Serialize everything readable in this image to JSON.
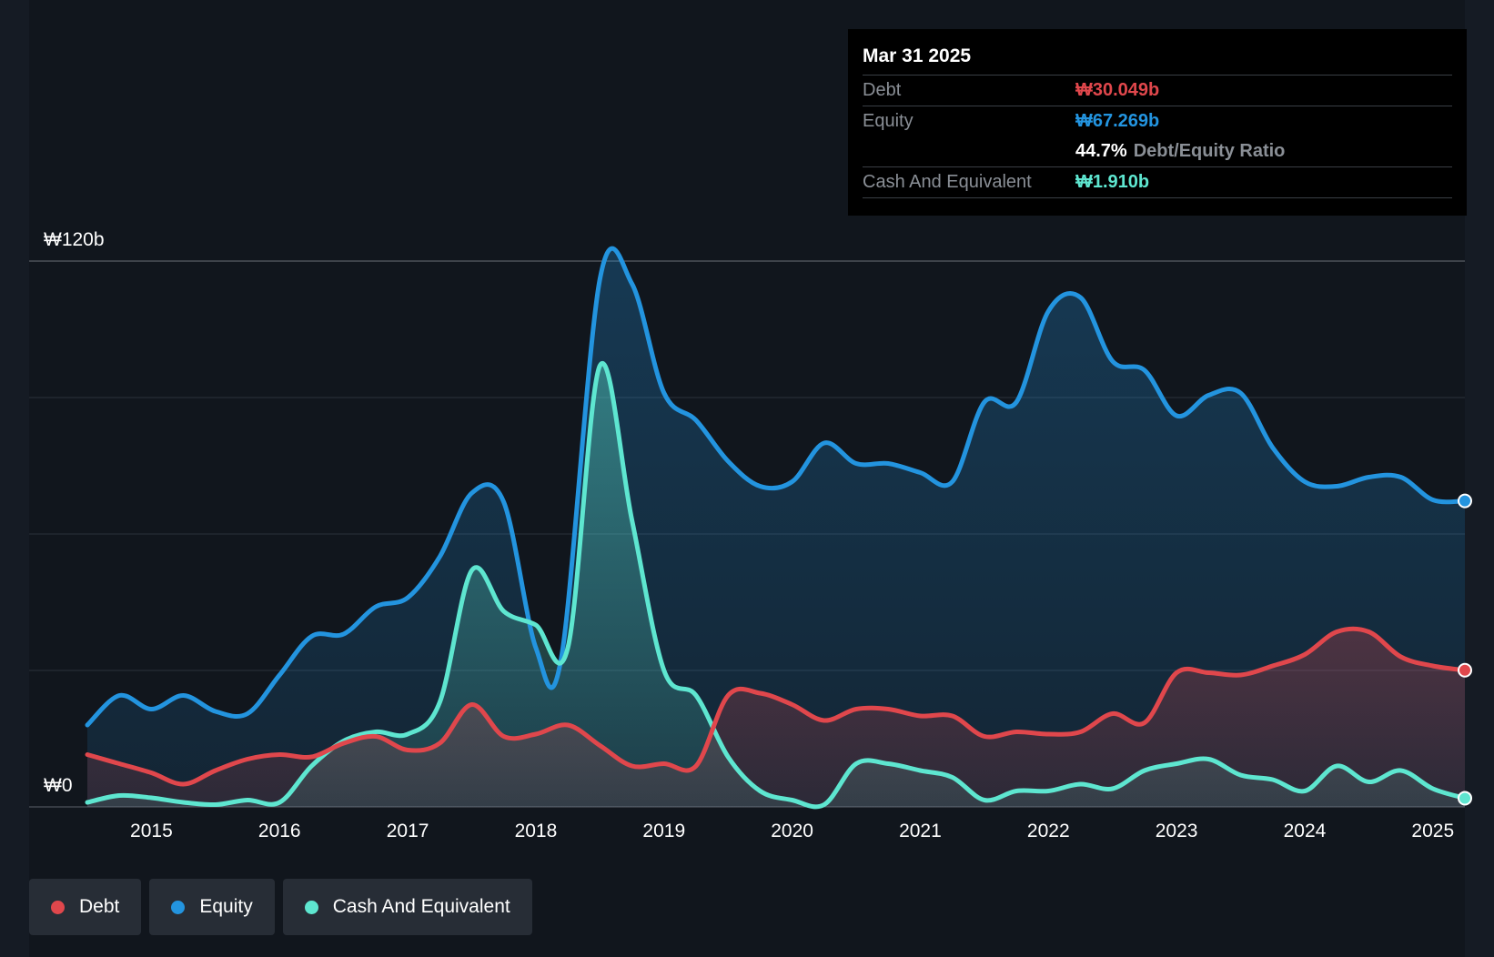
{
  "tooltip": {
    "date": "Mar 31 2025",
    "debt_label": "Debt",
    "debt_value": "₩30.049b",
    "equity_label": "Equity",
    "equity_value": "₩67.269b",
    "ratio_value": "44.7%",
    "ratio_label": "Debt/Equity Ratio",
    "cash_label": "Cash And Equivalent",
    "cash_value": "₩1.910b"
  },
  "legend": [
    {
      "label": "Debt",
      "color": "#e0474c"
    },
    {
      "label": "Equity",
      "color": "#2394df"
    },
    {
      "label": "Cash And Equivalent",
      "color": "#5ee6d0"
    }
  ],
  "chart_data": {
    "type": "area",
    "ylabels": [
      "₩120b",
      "₩0"
    ],
    "ylim": [
      0,
      120
    ],
    "xlim": [
      2014.5,
      2025.25
    ],
    "xticks": [
      "2015",
      "2016",
      "2017",
      "2018",
      "2019",
      "2020",
      "2021",
      "2022",
      "2023",
      "2024",
      "2025"
    ],
    "series": [
      {
        "name": "Equity",
        "color": "#2394df",
        "points": [
          [
            2014.5,
            18
          ],
          [
            2014.75,
            24.5
          ],
          [
            2015,
            21.5
          ],
          [
            2015.25,
            24.5
          ],
          [
            2015.5,
            21
          ],
          [
            2015.75,
            20.5
          ],
          [
            2016,
            29
          ],
          [
            2016.25,
            37.5
          ],
          [
            2016.5,
            38
          ],
          [
            2016.75,
            44
          ],
          [
            2017,
            46
          ],
          [
            2017.25,
            55
          ],
          [
            2017.5,
            69
          ],
          [
            2017.75,
            67
          ],
          [
            2018,
            35
          ],
          [
            2018.2,
            33
          ],
          [
            2018.5,
            116
          ],
          [
            2018.75,
            115
          ],
          [
            2019,
            91
          ],
          [
            2019.25,
            85
          ],
          [
            2019.5,
            76
          ],
          [
            2019.75,
            70.5
          ],
          [
            2020,
            71.5
          ],
          [
            2020.25,
            80
          ],
          [
            2020.5,
            75.5
          ],
          [
            2020.75,
            75.5
          ],
          [
            2021,
            73.5
          ],
          [
            2021.25,
            71.5
          ],
          [
            2021.5,
            89
          ],
          [
            2021.75,
            89
          ],
          [
            2022,
            109
          ],
          [
            2022.25,
            112
          ],
          [
            2022.5,
            98
          ],
          [
            2022.75,
            96
          ],
          [
            2023,
            86
          ],
          [
            2023.25,
            90.5
          ],
          [
            2023.5,
            91
          ],
          [
            2023.75,
            79
          ],
          [
            2024,
            71.5
          ],
          [
            2024.25,
            70.5
          ],
          [
            2024.5,
            72.5
          ],
          [
            2024.75,
            72.5
          ],
          [
            2025,
            67.5
          ],
          [
            2025.25,
            67.269
          ]
        ]
      },
      {
        "name": "Cash And Equivalent",
        "color": "#5ee6d0",
        "points": [
          [
            2014.5,
            1
          ],
          [
            2014.75,
            2.5
          ],
          [
            2015,
            2
          ],
          [
            2015.25,
            1
          ],
          [
            2015.5,
            0.5
          ],
          [
            2015.75,
            1.5
          ],
          [
            2016,
            1
          ],
          [
            2016.25,
            9
          ],
          [
            2016.5,
            14.5
          ],
          [
            2016.75,
            16.5
          ],
          [
            2017,
            16
          ],
          [
            2017.25,
            23
          ],
          [
            2017.5,
            52
          ],
          [
            2017.75,
            43
          ],
          [
            2018,
            40
          ],
          [
            2018.25,
            35
          ],
          [
            2018.5,
            97
          ],
          [
            2018.75,
            63
          ],
          [
            2019,
            30
          ],
          [
            2019.25,
            24.5
          ],
          [
            2019.5,
            11
          ],
          [
            2019.75,
            3.5
          ],
          [
            2020,
            1.5
          ],
          [
            2020.25,
            0.5
          ],
          [
            2020.5,
            9.5
          ],
          [
            2020.75,
            9.5
          ],
          [
            2021,
            8
          ],
          [
            2021.25,
            6.5
          ],
          [
            2021.5,
            1.5
          ],
          [
            2021.75,
            3.5
          ],
          [
            2022,
            3.5
          ],
          [
            2022.25,
            5
          ],
          [
            2022.5,
            4
          ],
          [
            2022.75,
            8
          ],
          [
            2023,
            9.5
          ],
          [
            2023.25,
            10.5
          ],
          [
            2023.5,
            7
          ],
          [
            2023.75,
            6
          ],
          [
            2024,
            3.5
          ],
          [
            2024.25,
            9
          ],
          [
            2024.5,
            5.5
          ],
          [
            2024.75,
            8
          ],
          [
            2025,
            4
          ],
          [
            2025.25,
            1.91
          ]
        ]
      },
      {
        "name": "Debt",
        "color": "#e0474c",
        "points": [
          [
            2014.5,
            11.5
          ],
          [
            2014.75,
            9.5
          ],
          [
            2015,
            7.5
          ],
          [
            2015.25,
            5
          ],
          [
            2015.5,
            8
          ],
          [
            2015.75,
            10.5
          ],
          [
            2016,
            11.5
          ],
          [
            2016.25,
            11
          ],
          [
            2016.5,
            14
          ],
          [
            2016.75,
            15.5
          ],
          [
            2017,
            12.5
          ],
          [
            2017.25,
            14
          ],
          [
            2017.5,
            22.5
          ],
          [
            2017.75,
            15.5
          ],
          [
            2018,
            16
          ],
          [
            2018.25,
            18
          ],
          [
            2018.5,
            13.5
          ],
          [
            2018.75,
            9
          ],
          [
            2019,
            9.5
          ],
          [
            2019.25,
            9
          ],
          [
            2019.5,
            24.5
          ],
          [
            2019.75,
            25
          ],
          [
            2020,
            22.5
          ],
          [
            2020.25,
            19
          ],
          [
            2020.5,
            21.5
          ],
          [
            2020.75,
            21.5
          ],
          [
            2021,
            20
          ],
          [
            2021.25,
            20
          ],
          [
            2021.5,
            15.5
          ],
          [
            2021.75,
            16.5
          ],
          [
            2022,
            16
          ],
          [
            2022.25,
            16.5
          ],
          [
            2022.5,
            20.5
          ],
          [
            2022.75,
            18.5
          ],
          [
            2023,
            29.5
          ],
          [
            2023.25,
            29.5
          ],
          [
            2023.5,
            29
          ],
          [
            2023.75,
            31
          ],
          [
            2024,
            33.5
          ],
          [
            2024.25,
            38.5
          ],
          [
            2024.5,
            38.5
          ],
          [
            2024.75,
            33
          ],
          [
            2025,
            31
          ],
          [
            2025.25,
            30.049
          ]
        ]
      }
    ]
  }
}
